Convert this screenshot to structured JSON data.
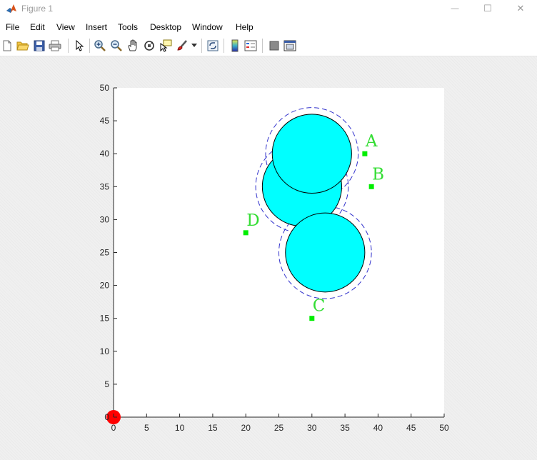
{
  "window": {
    "title": "Figure 1",
    "controls": {
      "minimize": "—",
      "maximize": "☐",
      "close": "✕"
    }
  },
  "menu": {
    "items": [
      "File",
      "Edit",
      "View",
      "Insert",
      "Tools",
      "Desktop",
      "Window",
      "Help"
    ],
    "dock_symbol": "➜"
  },
  "toolbar": {
    "buttons": [
      "new-figure",
      "open-file",
      "save",
      "print",
      "edit-plot",
      "zoom-in",
      "zoom-out",
      "pan",
      "rotate-3d",
      "data-cursor",
      "brush",
      "brush-dropdown",
      "link-plot",
      "insert-colorbar",
      "insert-legend",
      "hide-plot-tools",
      "show-plot-tools"
    ]
  },
  "chart_data": {
    "type": "scatter",
    "xlim": [
      0,
      50
    ],
    "ylim": [
      0,
      50
    ],
    "xticks": [
      0,
      5,
      10,
      15,
      20,
      25,
      30,
      35,
      40,
      45,
      50
    ],
    "yticks": [
      0,
      5,
      10,
      15,
      20,
      25,
      30,
      35,
      40,
      45,
      50
    ],
    "grid": false,
    "circles": [
      {
        "cx": 28.5,
        "cy": 35,
        "r": 6,
        "fill": "#00ffff",
        "edge": "#000000"
      },
      {
        "cx": 30,
        "cy": 40,
        "r": 6,
        "fill": "#00ffff",
        "edge": "#000000"
      },
      {
        "cx": 32,
        "cy": 25,
        "r": 6,
        "fill": "#00ffff",
        "edge": "#000000"
      }
    ],
    "dashed_circles": [
      {
        "cx": 28.5,
        "cy": 35,
        "r": 7,
        "color": "#3333cc"
      },
      {
        "cx": 30,
        "cy": 40,
        "r": 7,
        "color": "#3333cc"
      },
      {
        "cx": 32,
        "cy": 25,
        "r": 7,
        "color": "#3333cc"
      }
    ],
    "targets": [
      {
        "label": "A",
        "x": 38,
        "y": 40
      },
      {
        "label": "B",
        "x": 39,
        "y": 35
      },
      {
        "label": "C",
        "x": 30,
        "y": 15
      },
      {
        "label": "D",
        "x": 20,
        "y": 28
      }
    ],
    "target_color": "#00ee00",
    "label_color": "#33dd33",
    "origin_marker": {
      "x": 0,
      "y": 0,
      "color": "#ff0000"
    }
  }
}
